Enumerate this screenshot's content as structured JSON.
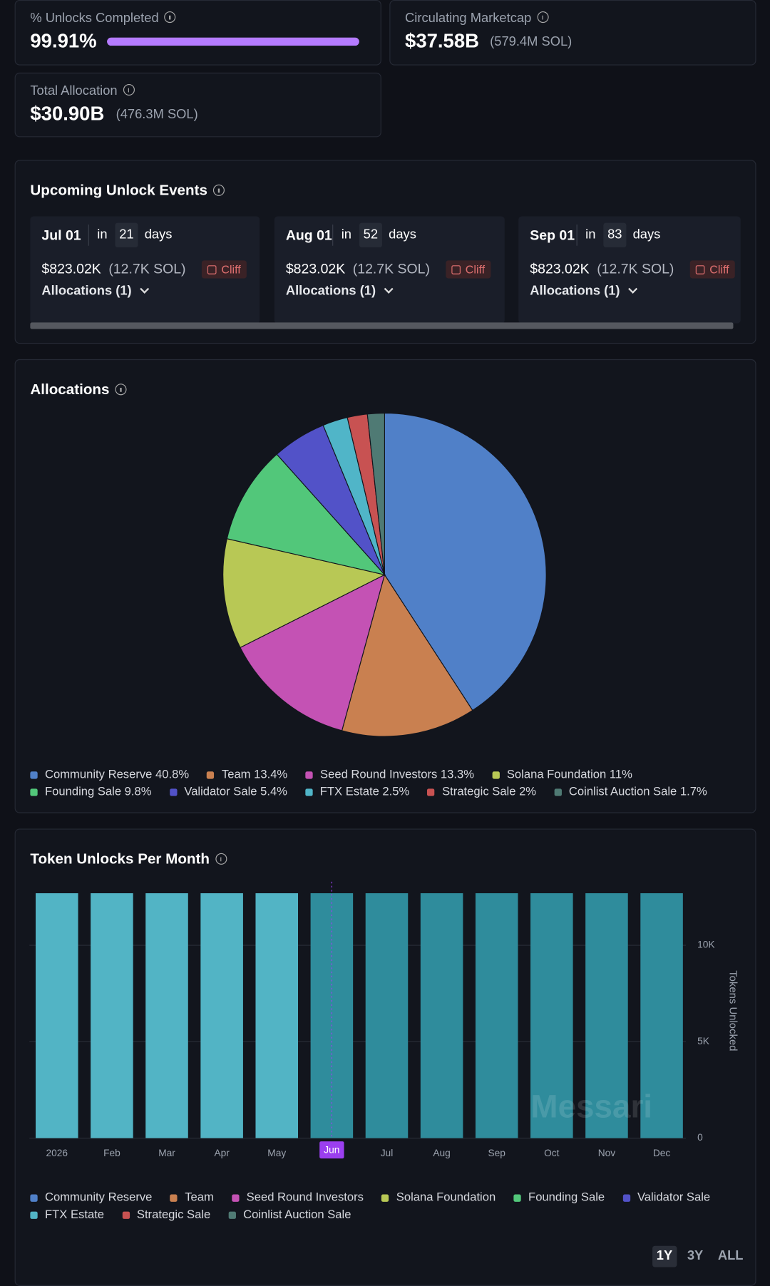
{
  "stats": [
    {
      "label": "% Unlocks Completed",
      "value": 99.91,
      "value_label": "99.91%"
    },
    {
      "label": "Circulating Marketcap",
      "value_label": "$37.58B",
      "sub": "(579.4M SOL)"
    },
    {
      "label": "Total Allocation",
      "value_label": "$30.90B",
      "sub": "(476.3M SOL)"
    }
  ],
  "upcoming": {
    "title": "Upcoming Unlock Events",
    "events": [
      {
        "date": "Jul 01",
        "in": "in",
        "days": "21",
        "unit": "days",
        "amount": "$823.02K",
        "tokens": "(12.7K SOL)",
        "type": "Cliff",
        "allocations": "Allocations (1)"
      },
      {
        "date": "Aug 01",
        "in": "in",
        "days": "52",
        "unit": "days",
        "amount": "$823.02K",
        "tokens": "(12.7K SOL)",
        "type": "Cliff",
        "allocations": "Allocations (1)"
      },
      {
        "date": "Sep 01",
        "in": "in",
        "days": "83",
        "unit": "days",
        "amount": "$823.02K",
        "tokens": "(12.7K SOL)",
        "type": "Cliff",
        "allocations": "Allocations (1)"
      }
    ]
  },
  "chart_data": [
    {
      "type": "pie",
      "title": "Allocations",
      "categories": [
        "Community Reserve",
        "Team",
        "Seed Round Investors",
        "Solana Foundation",
        "Founding Sale",
        "Validator Sale",
        "FTX Estate",
        "Strategic Sale",
        "Coinlist Auction Sale"
      ],
      "values": [
        40.8,
        13.4,
        13.3,
        11,
        9.8,
        5.4,
        2.5,
        2,
        1.7
      ],
      "value_labels": [
        "40.8%",
        "13.4%",
        "13.3%",
        "11%",
        "9.8%",
        "5.4%",
        "2.5%",
        "2%",
        "1.7%"
      ],
      "colors": [
        "#5080c8",
        "#c98050",
        "#c452b4",
        "#b8c855",
        "#52c77a",
        "#5252c8",
        "#50b5c8",
        "#c85252",
        "#4f7a74"
      ]
    },
    {
      "type": "bar",
      "title": "Token Unlocks Per Month",
      "y_label": "Tokens Unlocked",
      "categories": [
        "2026",
        "Feb",
        "Mar",
        "Apr",
        "May",
        "Jun",
        "Jul",
        "Aug",
        "Sep",
        "Oct",
        "Nov",
        "Dec"
      ],
      "ylim": [
        0,
        13000
      ],
      "yticks": [
        0,
        {
          "value": 5000,
          "label": "5K"
        },
        {
          "value": 10000,
          "label": "10K"
        }
      ],
      "grid": true,
      "series": [
        {
          "name": "Community Reserve",
          "color": "#5080c8",
          "values": [
            null,
            null,
            null,
            null,
            null,
            null,
            null,
            null,
            null,
            null,
            null,
            null
          ]
        },
        {
          "name": "Team",
          "color": "#c98050",
          "values": [
            null,
            null,
            null,
            null,
            null,
            null,
            null,
            null,
            null,
            null,
            null,
            null
          ]
        },
        {
          "name": "Seed Round Investors",
          "color": "#c452b4",
          "values": [
            null,
            null,
            null,
            null,
            null,
            null,
            null,
            null,
            null,
            null,
            null,
            null
          ]
        },
        {
          "name": "Solana Foundation",
          "color": "#b8c855",
          "values": [
            null,
            null,
            null,
            null,
            null,
            null,
            null,
            null,
            null,
            null,
            null,
            null
          ]
        },
        {
          "name": "Founding Sale",
          "color": "#52c77a",
          "values": [
            null,
            null,
            null,
            null,
            null,
            null,
            null,
            null,
            null,
            null,
            null,
            null
          ]
        },
        {
          "name": "Validator Sale",
          "color": "#5252c8",
          "values": [
            null,
            null,
            null,
            null,
            null,
            null,
            null,
            null,
            null,
            null,
            null,
            null
          ]
        },
        {
          "name": "FTX Estate",
          "color": "#52b4c5",
          "values": [
            12700,
            12700,
            12700,
            12700,
            12700,
            12700,
            12700,
            12700,
            12700,
            12700,
            12700,
            12700
          ]
        },
        {
          "name": "Strategic Sale",
          "color": "#c85252",
          "values": [
            null,
            null,
            null,
            null,
            null,
            null,
            null,
            null,
            null,
            null,
            null,
            null
          ]
        },
        {
          "name": "Coinlist Auction Sale",
          "color": "#4f7a74",
          "values": [
            null,
            null,
            null,
            null,
            null,
            null,
            null,
            null,
            null,
            null,
            null,
            null
          ]
        }
      ],
      "highlight_index": 5,
      "future_color": "#2f8c9c",
      "highlight_color": "#9b3ff0",
      "watermark": "Messari",
      "ranges": [
        "1Y",
        "3Y",
        "ALL"
      ],
      "active_range": 0
    }
  ]
}
